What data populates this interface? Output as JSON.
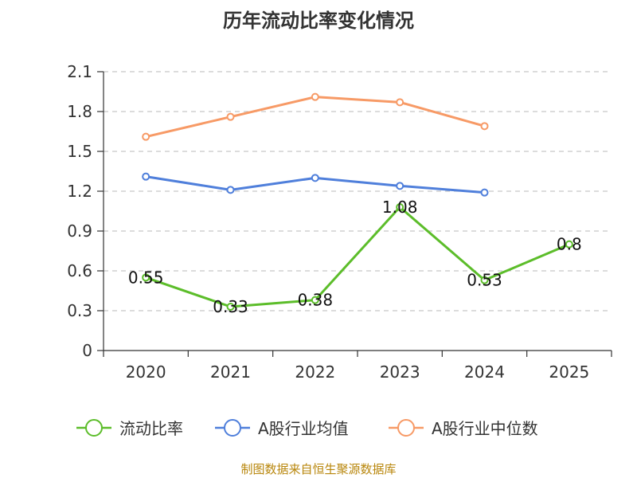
{
  "title": "历年流动比率变化情况",
  "source_note": "制图数据来自恒生聚源数据库",
  "chart_data": {
    "type": "line",
    "title": "历年流动比率变化情况",
    "xlabel": "",
    "ylabel": "",
    "categories": [
      "2020",
      "2021",
      "2022",
      "2023",
      "2024",
      "2025"
    ],
    "y_ticks": [
      "0",
      "0.3",
      "0.6",
      "0.9",
      "1.2",
      "1.5",
      "1.8",
      "2.1"
    ],
    "ylim": [
      0,
      2.1
    ],
    "grid": "horizontal dashed",
    "legend_position": "bottom",
    "series": [
      {
        "name": "流动比率",
        "color": "#5cbd2a",
        "values": [
          0.55,
          0.33,
          0.38,
          1.08,
          0.53,
          0.8
        ],
        "data_labels": [
          "0.55",
          "0.33",
          "0.38",
          "1.08",
          "0.53",
          "0.8"
        ]
      },
      {
        "name": "A股行业均值",
        "color": "#4f7fdb",
        "values": [
          1.31,
          1.21,
          1.3,
          1.24,
          1.19,
          null
        ]
      },
      {
        "name": "A股行业中位数",
        "color": "#f79a66",
        "values": [
          1.61,
          1.76,
          1.91,
          1.87,
          1.69,
          null
        ]
      }
    ]
  }
}
